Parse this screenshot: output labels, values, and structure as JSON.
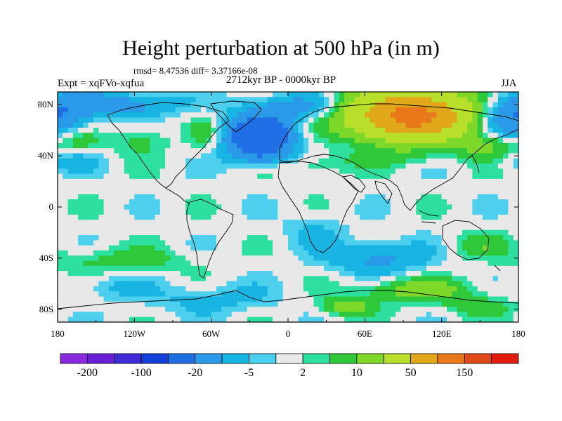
{
  "chart_data": {
    "type": "heatmap",
    "title": "Height perturbation at 500 hPa (in m)",
    "stats": "rmsd= 8.47536 diff= 3.37166e-08",
    "left_label": "Expt = xqFVo-xqfua",
    "center_label": "2712kyr BP - 0000kyr BP",
    "right_label": "JJA",
    "x_ticks": [
      {
        "value": -180,
        "label": "180"
      },
      {
        "value": -120,
        "label": "120W"
      },
      {
        "value": -60,
        "label": "60W"
      },
      {
        "value": 0,
        "label": "0"
      },
      {
        "value": 60,
        "label": "60E"
      },
      {
        "value": 120,
        "label": "120E"
      },
      {
        "value": 180,
        "label": "180"
      }
    ],
    "y_ticks": [
      {
        "value": 80,
        "label": "80N"
      },
      {
        "value": 40,
        "label": "40N"
      },
      {
        "value": 0,
        "label": "0"
      },
      {
        "value": -40,
        "label": "40S"
      },
      {
        "value": -80,
        "label": "80S"
      }
    ],
    "xlim": [
      -180,
      180
    ],
    "ylim": [
      -90,
      90
    ],
    "levels": [
      -200,
      -150,
      -100,
      -50,
      -20,
      -10,
      -5,
      -2,
      2,
      5,
      10,
      20,
      50,
      100,
      150,
      200
    ],
    "colors": [
      "#8a2be2",
      "#6a1fd8",
      "#3f2cd9",
      "#1040d8",
      "#1f6fe6",
      "#2a9ae8",
      "#18b4e2",
      "#4cd0ee",
      "#e8e8e8",
      "#2ee0a0",
      "#2ec83a",
      "#7ed82a",
      "#b8e02a",
      "#e0a81a",
      "#e8781a",
      "#e04a1a",
      "#e01e10"
    ],
    "colorbar_labels": [
      {
        "label": "-200",
        "index": 1
      },
      {
        "label": "-100",
        "index": 3
      },
      {
        "label": "-20",
        "index": 5
      },
      {
        "label": "-5",
        "index": 7
      },
      {
        "label": "2",
        "index": 9
      },
      {
        "label": "10",
        "index": 11
      },
      {
        "label": "50",
        "index": 13
      },
      {
        "label": "150",
        "index": 15
      }
    ],
    "features": [
      {
        "lon": 95,
        "lat": 72,
        "rlon": 45,
        "rlat": 18,
        "amp": 90
      },
      {
        "lon": 100,
        "lat": 70,
        "rlon": 22,
        "rlat": 10,
        "amp": 40
      },
      {
        "lon": -22,
        "lat": 55,
        "rlon": 26,
        "rlat": 16,
        "amp": -40
      },
      {
        "lon": 10,
        "lat": 78,
        "rlon": 40,
        "rlat": 10,
        "amp": -14
      },
      {
        "lon": -130,
        "lat": 80,
        "rlon": 45,
        "rlat": 10,
        "amp": -14
      },
      {
        "lon": 175,
        "lat": 70,
        "rlon": 28,
        "rlat": 18,
        "amp": -22
      },
      {
        "lon": 155,
        "lat": 48,
        "rlon": 22,
        "rlat": 10,
        "amp": 14
      },
      {
        "lon": -165,
        "lat": 52,
        "rlon": 18,
        "rlat": 10,
        "amp": 9
      },
      {
        "lon": -115,
        "lat": 52,
        "rlon": 20,
        "rlat": 12,
        "amp": 8
      },
      {
        "lon": -65,
        "lat": 58,
        "rlon": 12,
        "rlat": 12,
        "amp": 7
      },
      {
        "lon": -168,
        "lat": 35,
        "rlon": 22,
        "rlat": 8,
        "amp": -8
      },
      {
        "lon": 20,
        "lat": 32,
        "rlon": 28,
        "rlat": 9,
        "amp": 6
      },
      {
        "lon": 80,
        "lat": 38,
        "rlon": 40,
        "rlat": 7,
        "amp": 5
      },
      {
        "lon": -20,
        "lat": 38,
        "rlon": 25,
        "rlat": 7,
        "amp": -6
      },
      {
        "lon": -130,
        "lat": -42,
        "rlon": 50,
        "rlat": 10,
        "amp": 8
      },
      {
        "lon": 70,
        "lat": -40,
        "rlon": 40,
        "rlat": 14,
        "amp": -12
      },
      {
        "lon": 20,
        "lat": -18,
        "rlon": 25,
        "rlat": 14,
        "amp": -5
      },
      {
        "lon": 150,
        "lat": -30,
        "rlon": 25,
        "rlat": 10,
        "amp": 7
      },
      {
        "lon": 100,
        "lat": -65,
        "rlon": 45,
        "rlat": 10,
        "amp": 14
      },
      {
        "lon": 45,
        "lat": -78,
        "rlon": 20,
        "rlat": 7,
        "amp": 14
      },
      {
        "lon": 150,
        "lat": -78,
        "rlon": 25,
        "rlat": 8,
        "amp": 8
      },
      {
        "lon": -60,
        "lat": -72,
        "rlon": 50,
        "rlat": 12,
        "amp": -7
      },
      {
        "lon": -140,
        "lat": -62,
        "rlon": 30,
        "rlat": 10,
        "amp": -6
      }
    ]
  }
}
